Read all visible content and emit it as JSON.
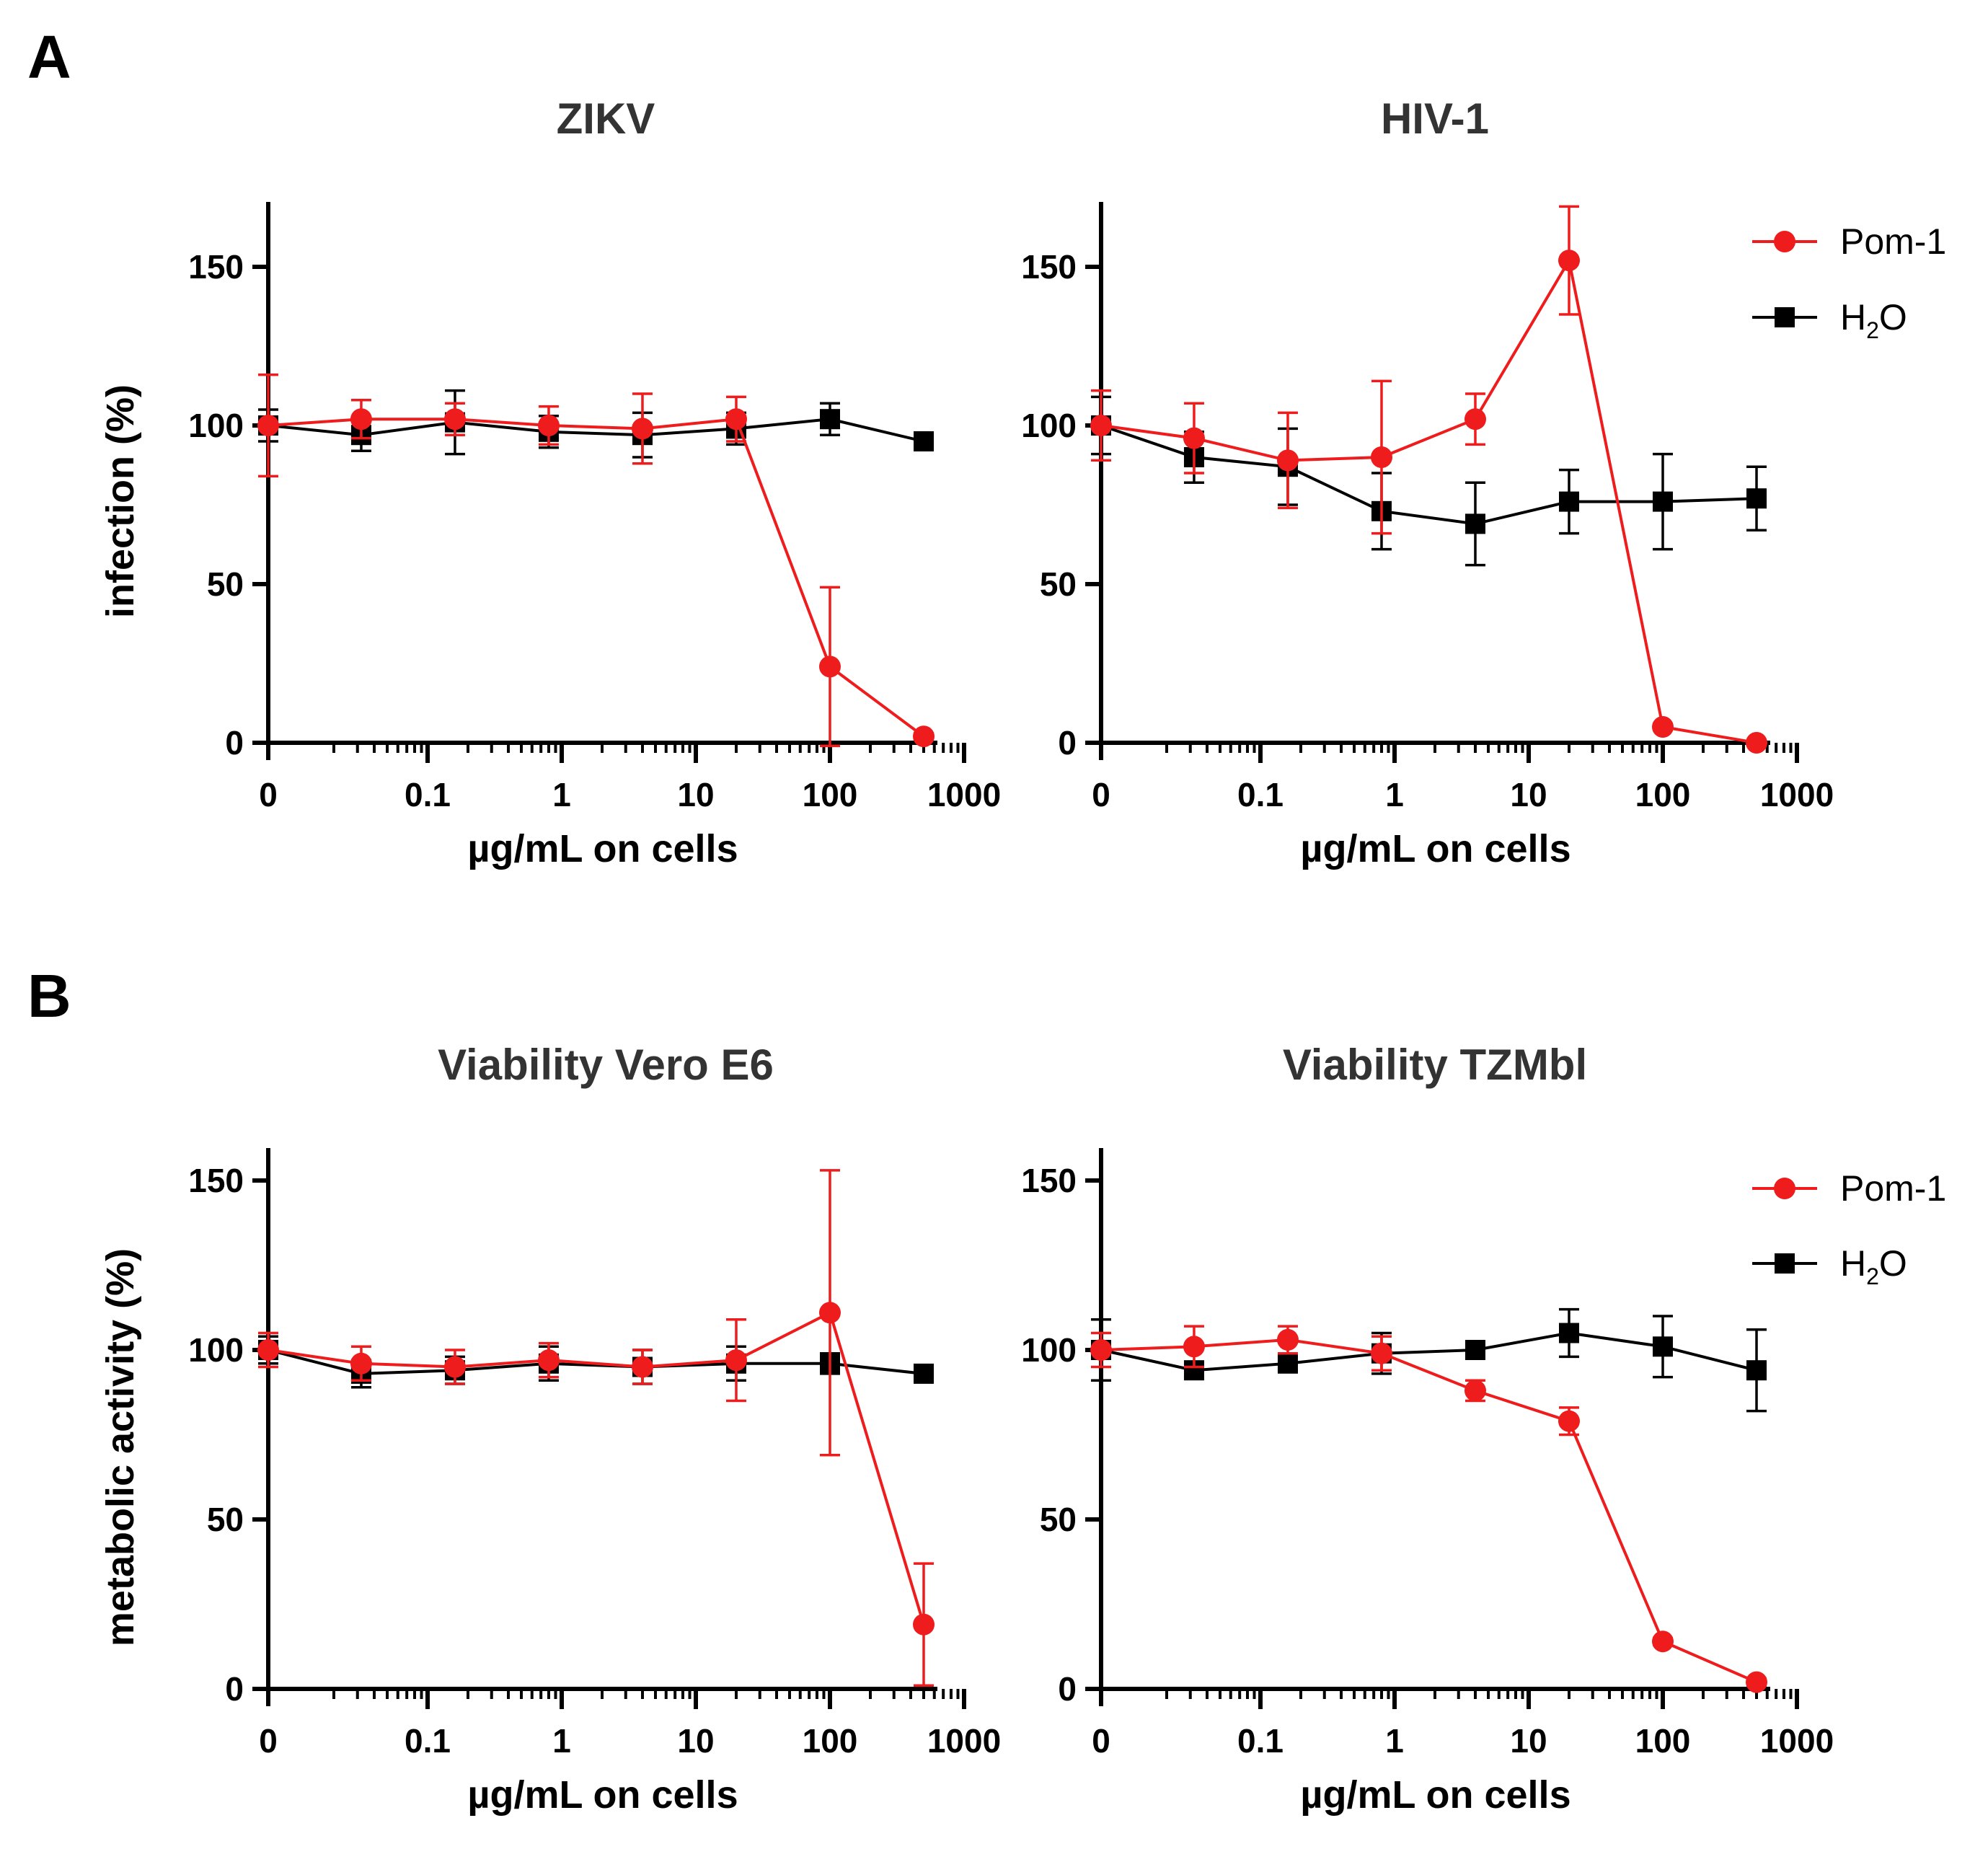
{
  "figure": {
    "panel_letters": [
      "A",
      "B"
    ]
  },
  "legend": {
    "pom1_label": "Pom-1",
    "h2o_label_main": "H",
    "h2o_label_sub": "2",
    "h2o_label_tail": "O"
  },
  "colors": {
    "pom1": "#ee1c1c",
    "h2o": "#000000"
  },
  "chart_data": [
    {
      "type": "line",
      "title": "ZIKV",
      "xlabel": "µg/mL on cells",
      "ylabel": "infection (%)",
      "xscale": "log",
      "xtick_labels": [
        "0",
        "0.1",
        "1",
        "10",
        "100",
        "1000"
      ],
      "ytick_labels": [
        "0",
        "50",
        "100",
        "150"
      ],
      "ylim": [
        0,
        170
      ],
      "legend": false,
      "series": [
        {
          "name": "Pom-1",
          "marker": "circle",
          "x": [
            "0",
            0.032,
            0.16,
            0.8,
            4,
            20,
            100,
            500
          ],
          "y": [
            100,
            102,
            102,
            100,
            99,
            102,
            24,
            2
          ],
          "err": [
            16,
            6,
            5,
            6,
            11,
            7,
            25,
            1
          ]
        },
        {
          "name": "H2O",
          "marker": "square",
          "x": [
            "0",
            0.032,
            0.16,
            0.8,
            4,
            20,
            100,
            500
          ],
          "y": [
            100,
            97,
            101,
            98,
            97,
            99,
            102,
            95
          ],
          "err": [
            5,
            5,
            10,
            5,
            7,
            5,
            5,
            2
          ]
        }
      ]
    },
    {
      "type": "line",
      "title": "HIV-1",
      "xlabel": "µg/mL on cells",
      "ylabel": "",
      "xscale": "log",
      "xtick_labels": [
        "0",
        "0.1",
        "1",
        "10",
        "100",
        "1000"
      ],
      "ytick_labels": [
        "0",
        "50",
        "100",
        "150"
      ],
      "ylim": [
        0,
        170
      ],
      "legend": true,
      "series": [
        {
          "name": "Pom-1",
          "marker": "circle",
          "x": [
            "0",
            0.032,
            0.16,
            0.8,
            4,
            20,
            100,
            500
          ],
          "y": [
            100,
            96,
            89,
            90,
            102,
            152,
            5,
            0
          ],
          "err": [
            11,
            11,
            15,
            24,
            8,
            17,
            1,
            0
          ]
        },
        {
          "name": "H2O",
          "marker": "square",
          "x": [
            "0",
            0.032,
            0.16,
            0.8,
            4,
            20,
            100,
            500
          ],
          "y": [
            100,
            90,
            87,
            73,
            69,
            76,
            76,
            77
          ],
          "err": [
            9,
            8,
            12,
            12,
            13,
            10,
            15,
            10
          ]
        }
      ]
    },
    {
      "type": "line",
      "title": "Viability Vero E6",
      "xlabel": "µg/mL on cells",
      "ylabel": "metabolic activity (%)",
      "xscale": "log",
      "xtick_labels": [
        "0",
        "0.1",
        "1",
        "10",
        "100",
        "1000"
      ],
      "ytick_labels": [
        "0",
        "50",
        "100",
        "150"
      ],
      "ylim": [
        0,
        160
      ],
      "legend": false,
      "series": [
        {
          "name": "Pom-1",
          "marker": "circle",
          "x": [
            "0",
            0.032,
            0.16,
            0.8,
            4,
            20,
            100,
            500
          ],
          "y": [
            100,
            96,
            95,
            97,
            95,
            97,
            111,
            19
          ],
          "err": [
            5,
            5,
            5,
            5,
            5,
            12,
            42,
            18
          ]
        },
        {
          "name": "H2O",
          "marker": "square",
          "x": [
            "0",
            0.032,
            0.16,
            0.8,
            4,
            20,
            100,
            500
          ],
          "y": [
            100,
            93,
            94,
            96,
            95,
            96,
            96,
            93
          ],
          "err": [
            4,
            4,
            4,
            5,
            5,
            5,
            3,
            2
          ]
        }
      ]
    },
    {
      "type": "line",
      "title": "Viability TZMbl",
      "xlabel": "µg/mL on cells",
      "ylabel": "",
      "xscale": "log",
      "xtick_labels": [
        "0",
        "0.1",
        "1",
        "10",
        "100",
        "1000"
      ],
      "ytick_labels": [
        "0",
        "50",
        "100",
        "150"
      ],
      "ylim": [
        0,
        160
      ],
      "legend": true,
      "series": [
        {
          "name": "Pom-1",
          "marker": "circle",
          "x": [
            "0",
            0.032,
            0.16,
            0.8,
            4,
            20,
            100,
            500
          ],
          "y": [
            100,
            101,
            103,
            99,
            88,
            79,
            14,
            2
          ],
          "err": [
            5,
            6,
            4,
            5,
            3,
            4,
            1,
            1
          ]
        },
        {
          "name": "H2O",
          "marker": "square",
          "x": [
            "0",
            0.032,
            0.16,
            0.8,
            4,
            20,
            100,
            500
          ],
          "y": [
            100,
            94,
            96,
            99,
            100,
            105,
            101,
            94
          ],
          "err": [
            9,
            2,
            2,
            6,
            2,
            7,
            9,
            12
          ]
        }
      ]
    }
  ]
}
